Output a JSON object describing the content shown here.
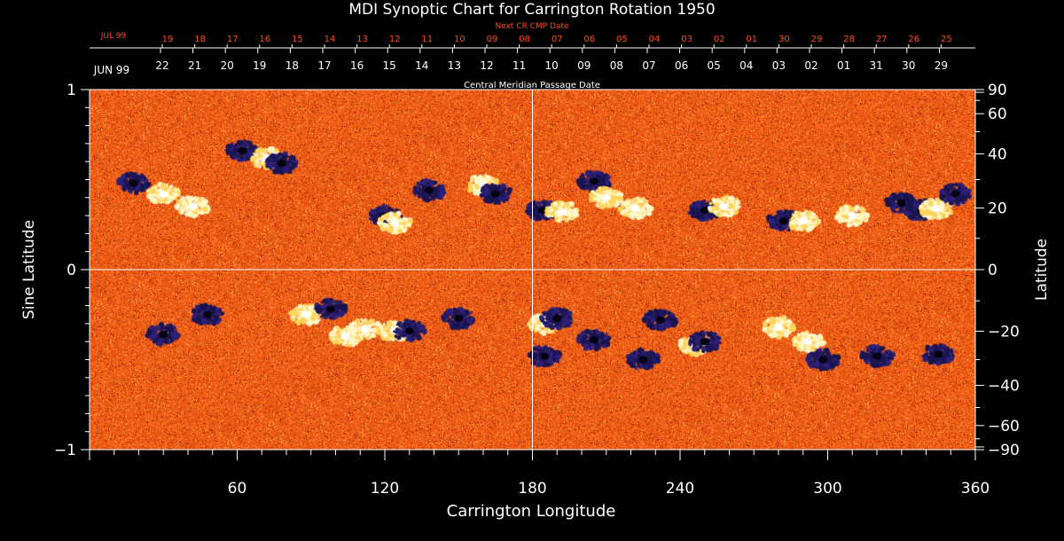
{
  "chart_data": {
    "type": "heatmap",
    "title": "MDI Synoptic Chart for Carrington Rotation 1950",
    "xlabel": "Carrington Longitude",
    "ylabel_left": "Sine Latitude",
    "ylabel_right": "Latitude",
    "top_axis_label": "Central Meridian Passage Date",
    "next_axis_label": "Next CR CMP Date",
    "xlim": [
      0,
      360
    ],
    "ylim": [
      -1,
      1
    ],
    "x_ticks": [
      60,
      120,
      180,
      240,
      300,
      360
    ],
    "y_left_ticks": [
      {
        "value": -1,
        "label": "−1"
      },
      {
        "value": 0,
        "label": "0"
      },
      {
        "value": 1,
        "label": "1"
      }
    ],
    "lat_ticks": [
      {
        "value": 90,
        "label": "90"
      },
      {
        "value": 60,
        "label": "60"
      },
      {
        "value": 40,
        "label": "40"
      },
      {
        "value": 20,
        "label": "20"
      },
      {
        "value": 0,
        "label": "0"
      },
      {
        "value": -20,
        "label": "−20"
      },
      {
        "value": -40,
        "label": "−40"
      },
      {
        "value": -60,
        "label": "−60"
      },
      {
        "value": -90,
        "label": "−90"
      }
    ],
    "cmp_month_label": "JUN 99",
    "cmp_dates": [
      "22",
      "21",
      "20",
      "19",
      "18",
      "17",
      "16",
      "15",
      "14",
      "13",
      "12",
      "11",
      "10",
      "09",
      "08",
      "07",
      "06",
      "05",
      "04",
      "03",
      "02",
      "01",
      "31",
      "30",
      "29"
    ],
    "next_month_label": "JUL 99",
    "next_dates": [
      "19",
      "18",
      "17",
      "16",
      "15",
      "14",
      "13",
      "12",
      "11",
      "10",
      "09",
      "08",
      "07",
      "06",
      "05",
      "04",
      "03",
      "02",
      "01",
      "30",
      "29",
      "28",
      "27",
      "26",
      "25"
    ],
    "reference_lines": {
      "longitude": 180,
      "sine_latitude": 0
    },
    "colors": {
      "background": "#000000",
      "field_base": "#e8541a",
      "positive": "#fff6c8",
      "negative": "#1a1550",
      "axis": "#ffffff",
      "next_axis": "#ff4a1a"
    },
    "active_regions": [
      {
        "lon": 18,
        "sinlat": 0.48,
        "polarity": "negative"
      },
      {
        "lon": 30,
        "sinlat": 0.42,
        "polarity": "positive"
      },
      {
        "lon": 42,
        "sinlat": 0.35,
        "polarity": "positive"
      },
      {
        "lon": 62,
        "sinlat": 0.66,
        "polarity": "negative"
      },
      {
        "lon": 72,
        "sinlat": 0.62,
        "polarity": "positive"
      },
      {
        "lon": 78,
        "sinlat": 0.59,
        "polarity": "negative"
      },
      {
        "lon": 120,
        "sinlat": 0.3,
        "polarity": "negative"
      },
      {
        "lon": 124,
        "sinlat": 0.26,
        "polarity": "positive"
      },
      {
        "lon": 138,
        "sinlat": 0.44,
        "polarity": "negative"
      },
      {
        "lon": 160,
        "sinlat": 0.47,
        "polarity": "positive"
      },
      {
        "lon": 165,
        "sinlat": 0.42,
        "polarity": "negative"
      },
      {
        "lon": 184,
        "sinlat": 0.33,
        "polarity": "negative"
      },
      {
        "lon": 192,
        "sinlat": 0.32,
        "polarity": "positive"
      },
      {
        "lon": 205,
        "sinlat": 0.49,
        "polarity": "negative"
      },
      {
        "lon": 210,
        "sinlat": 0.4,
        "polarity": "positive"
      },
      {
        "lon": 222,
        "sinlat": 0.34,
        "polarity": "positive"
      },
      {
        "lon": 250,
        "sinlat": 0.33,
        "polarity": "negative"
      },
      {
        "lon": 258,
        "sinlat": 0.35,
        "polarity": "positive"
      },
      {
        "lon": 282,
        "sinlat": 0.27,
        "polarity": "negative"
      },
      {
        "lon": 290,
        "sinlat": 0.27,
        "polarity": "positive"
      },
      {
        "lon": 310,
        "sinlat": 0.3,
        "polarity": "positive"
      },
      {
        "lon": 330,
        "sinlat": 0.37,
        "polarity": "negative"
      },
      {
        "lon": 338,
        "sinlat": 0.33,
        "polarity": "negative"
      },
      {
        "lon": 344,
        "sinlat": 0.34,
        "polarity": "positive"
      },
      {
        "lon": 352,
        "sinlat": 0.42,
        "polarity": "negative"
      },
      {
        "lon": 30,
        "sinlat": -0.36,
        "polarity": "negative"
      },
      {
        "lon": 48,
        "sinlat": -0.25,
        "polarity": "negative"
      },
      {
        "lon": 88,
        "sinlat": -0.25,
        "polarity": "positive"
      },
      {
        "lon": 98,
        "sinlat": -0.22,
        "polarity": "negative"
      },
      {
        "lon": 104,
        "sinlat": -0.37,
        "polarity": "positive"
      },
      {
        "lon": 112,
        "sinlat": -0.33,
        "polarity": "positive"
      },
      {
        "lon": 124,
        "sinlat": -0.34,
        "polarity": "positive"
      },
      {
        "lon": 130,
        "sinlat": -0.34,
        "polarity": "negative"
      },
      {
        "lon": 150,
        "sinlat": -0.27,
        "polarity": "negative"
      },
      {
        "lon": 185,
        "sinlat": -0.3,
        "polarity": "positive"
      },
      {
        "lon": 190,
        "sinlat": -0.27,
        "polarity": "negative"
      },
      {
        "lon": 185,
        "sinlat": -0.48,
        "polarity": "negative"
      },
      {
        "lon": 205,
        "sinlat": -0.39,
        "polarity": "negative"
      },
      {
        "lon": 225,
        "sinlat": -0.5,
        "polarity": "negative"
      },
      {
        "lon": 232,
        "sinlat": -0.28,
        "polarity": "negative"
      },
      {
        "lon": 246,
        "sinlat": -0.42,
        "polarity": "positive"
      },
      {
        "lon": 250,
        "sinlat": -0.4,
        "polarity": "negative"
      },
      {
        "lon": 280,
        "sinlat": -0.32,
        "polarity": "positive"
      },
      {
        "lon": 292,
        "sinlat": -0.4,
        "polarity": "positive"
      },
      {
        "lon": 298,
        "sinlat": -0.5,
        "polarity": "negative"
      },
      {
        "lon": 320,
        "sinlat": -0.48,
        "polarity": "negative"
      },
      {
        "lon": 345,
        "sinlat": -0.47,
        "polarity": "negative"
      }
    ]
  }
}
